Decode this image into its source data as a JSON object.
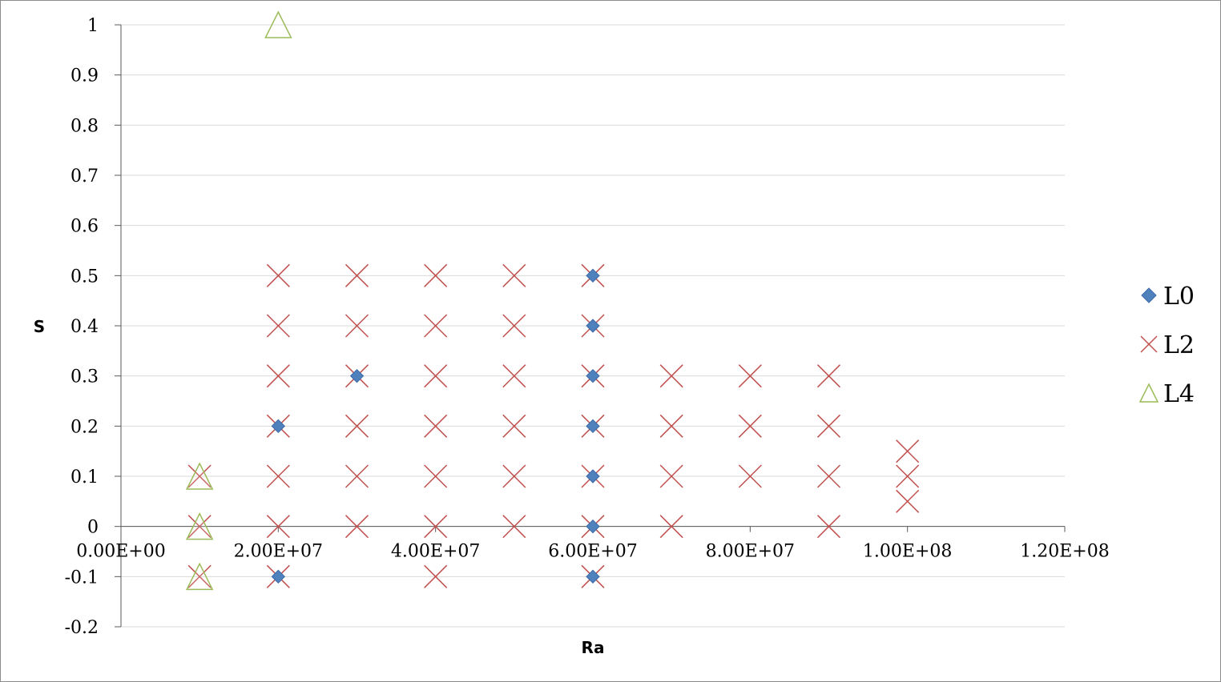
{
  "chart_data": {
    "type": "scatter",
    "title": "",
    "xlabel": "Ra",
    "ylabel": "S",
    "xlim": [
      0,
      120000000
    ],
    "ylim": [
      -0.2,
      1
    ],
    "x_ticks": [
      0,
      20000000,
      40000000,
      60000000,
      80000000,
      100000000,
      120000000
    ],
    "x_tick_labels": [
      "0.00E+00",
      "2.00E+07",
      "4.00E+07",
      "6.00E+07",
      "8.00E+07",
      "1.00E+08",
      "1.20E+08"
    ],
    "y_ticks": [
      -0.2,
      -0.1,
      0,
      0.1,
      0.2,
      0.3,
      0.4,
      0.5,
      0.6,
      0.7,
      0.8,
      0.9,
      1
    ],
    "y_tick_labels": [
      "-0.2",
      "-0.1",
      "0",
      "0.1",
      "0.2",
      "0.3",
      "0.4",
      "0.5",
      "0.6",
      "0.7",
      "0.8",
      "0.9",
      "1"
    ],
    "grid": true,
    "legend_position": "right",
    "series": [
      {
        "name": "L0",
        "marker": "diamond",
        "color": "#4f81bd",
        "points": [
          [
            20000000,
            -0.1
          ],
          [
            20000000,
            0.2
          ],
          [
            30000000,
            0.3
          ],
          [
            60000000,
            -0.1
          ],
          [
            60000000,
            0
          ],
          [
            60000000,
            0.1
          ],
          [
            60000000,
            0.2
          ],
          [
            60000000,
            0.3
          ],
          [
            60000000,
            0.4
          ],
          [
            60000000,
            0.5
          ]
        ]
      },
      {
        "name": "L2",
        "marker": "x",
        "color": "#c0504d",
        "points": [
          [
            10000000,
            -0.1
          ],
          [
            10000000,
            0
          ],
          [
            10000000,
            0.1
          ],
          [
            20000000,
            -0.1
          ],
          [
            20000000,
            0
          ],
          [
            20000000,
            0.1
          ],
          [
            20000000,
            0.2
          ],
          [
            20000000,
            0.3
          ],
          [
            20000000,
            0.4
          ],
          [
            20000000,
            0.5
          ],
          [
            30000000,
            0
          ],
          [
            30000000,
            0.1
          ],
          [
            30000000,
            0.2
          ],
          [
            30000000,
            0.3
          ],
          [
            30000000,
            0.4
          ],
          [
            30000000,
            0.5
          ],
          [
            40000000,
            -0.1
          ],
          [
            40000000,
            0
          ],
          [
            40000000,
            0.1
          ],
          [
            40000000,
            0.2
          ],
          [
            40000000,
            0.3
          ],
          [
            40000000,
            0.4
          ],
          [
            40000000,
            0.5
          ],
          [
            50000000,
            0
          ],
          [
            50000000,
            0.1
          ],
          [
            50000000,
            0.2
          ],
          [
            50000000,
            0.3
          ],
          [
            50000000,
            0.4
          ],
          [
            50000000,
            0.5
          ],
          [
            60000000,
            -0.1
          ],
          [
            60000000,
            0
          ],
          [
            60000000,
            0.1
          ],
          [
            60000000,
            0.2
          ],
          [
            60000000,
            0.3
          ],
          [
            60000000,
            0.4
          ],
          [
            60000000,
            0.5
          ],
          [
            70000000,
            0
          ],
          [
            70000000,
            0.1
          ],
          [
            70000000,
            0.2
          ],
          [
            70000000,
            0.3
          ],
          [
            80000000,
            0.1
          ],
          [
            80000000,
            0.2
          ],
          [
            80000000,
            0.3
          ],
          [
            90000000,
            0
          ],
          [
            90000000,
            0.1
          ],
          [
            90000000,
            0.2
          ],
          [
            90000000,
            0.3
          ],
          [
            100000000,
            0.05
          ],
          [
            100000000,
            0.1
          ],
          [
            100000000,
            0.15
          ]
        ]
      },
      {
        "name": "L4",
        "marker": "triangle",
        "color": "#9bbb59",
        "points": [
          [
            10000000,
            -0.1
          ],
          [
            10000000,
            0
          ],
          [
            10000000,
            0.1
          ],
          [
            20000000,
            1
          ]
        ]
      }
    ]
  }
}
